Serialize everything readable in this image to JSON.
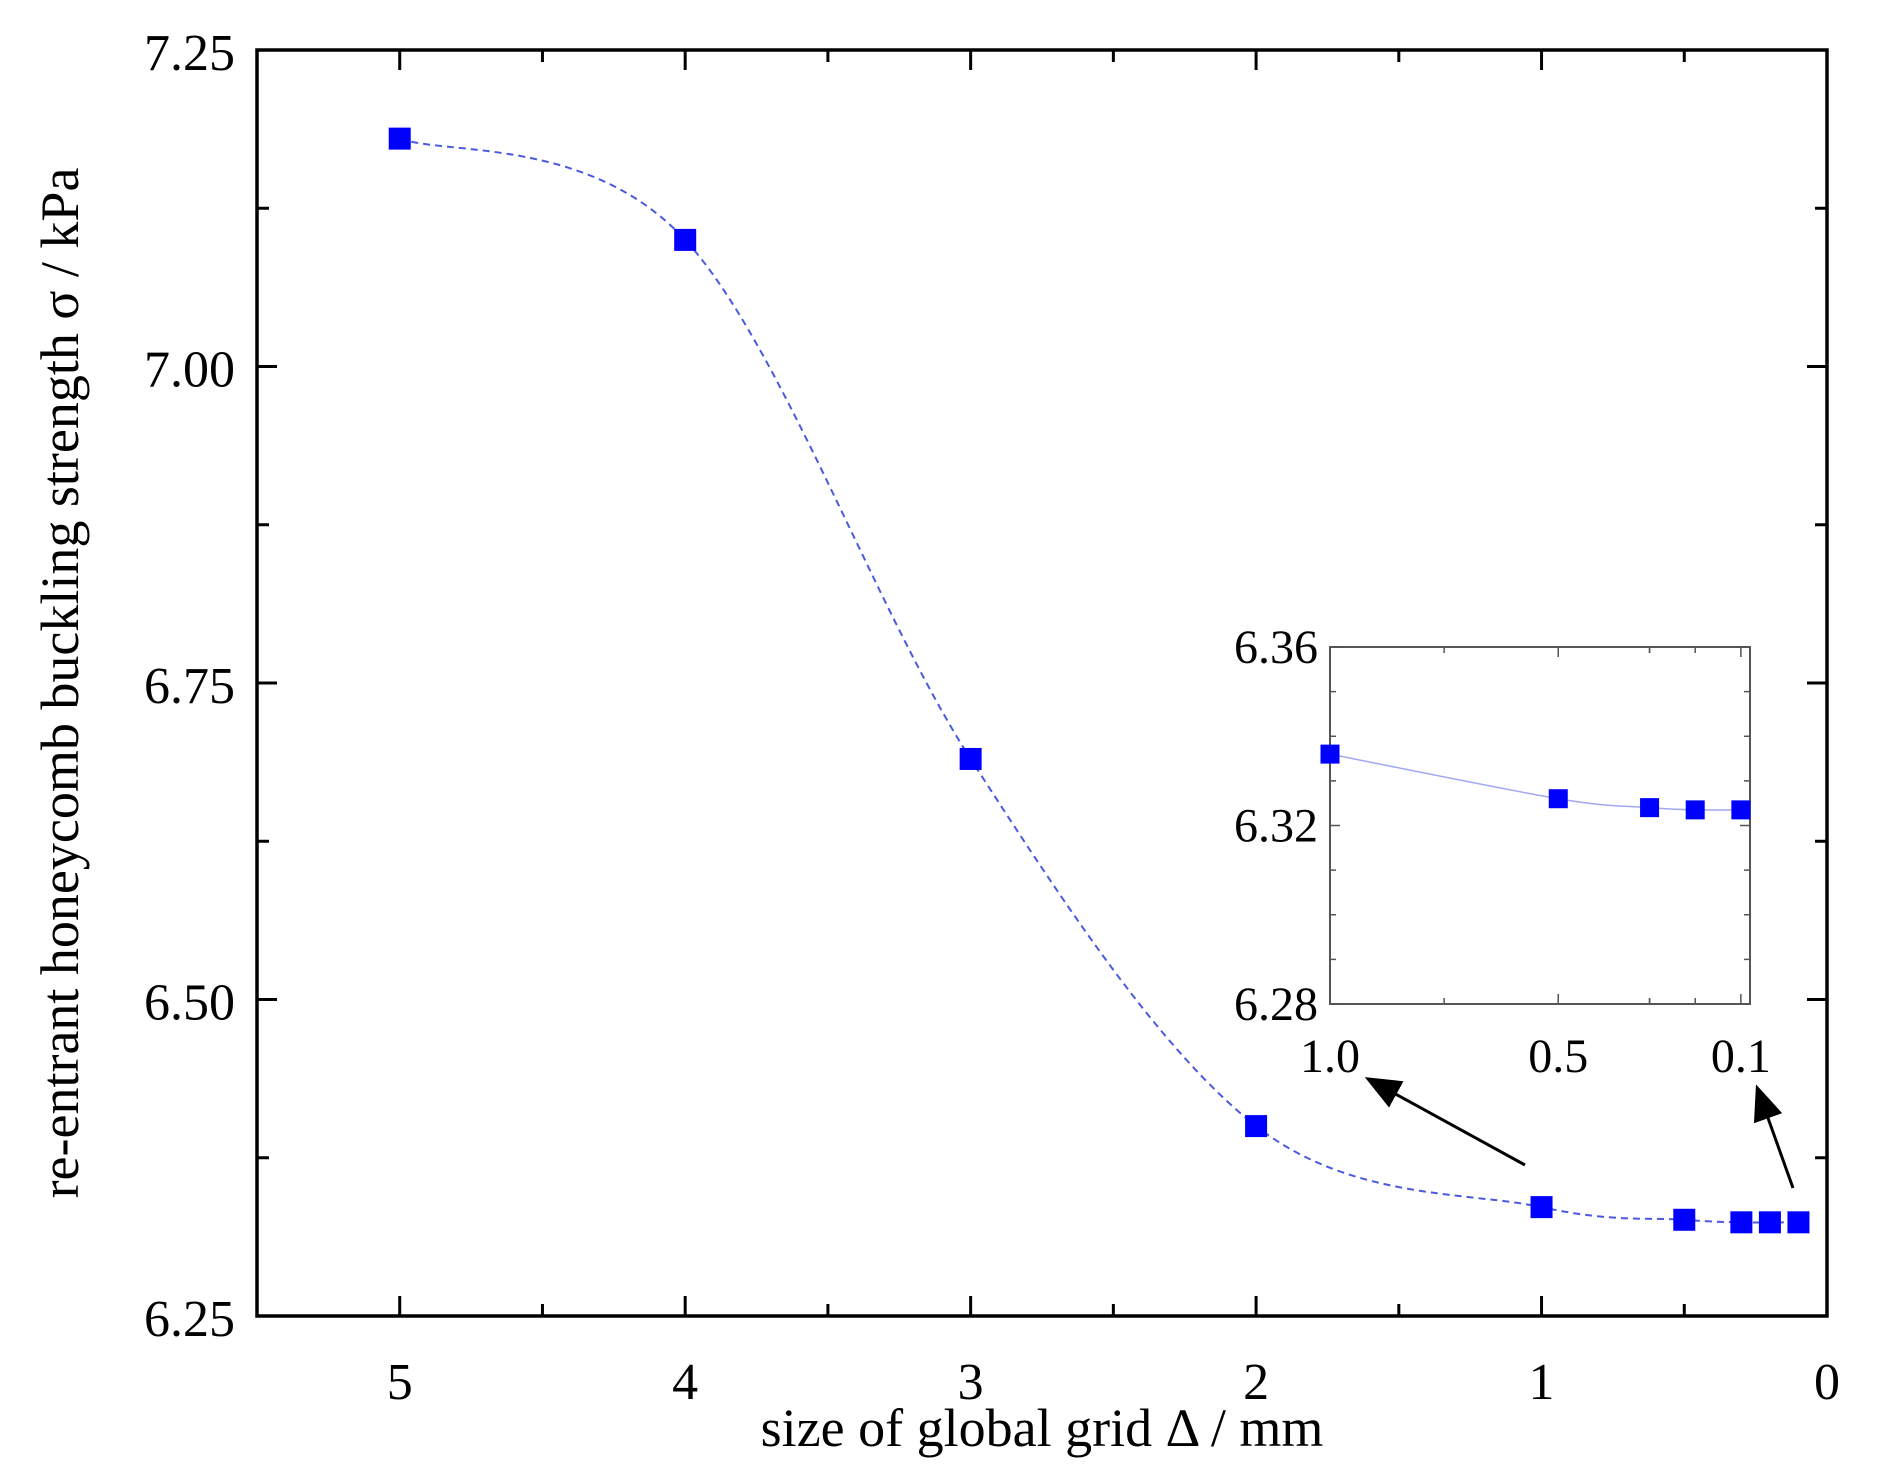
{
  "chart_data": [
    {
      "type": "line",
      "xlabel": "size of global grid Δ / mm",
      "ylabel": "re-entrant honeycomb  buckling strength σ / kPa",
      "xlim": [
        5.5,
        0
      ],
      "ylim": [
        6.25,
        7.25
      ],
      "x_reversed": true,
      "x_ticks": [
        "5",
        "4",
        "3",
        "2",
        "1",
        "0"
      ],
      "x_tick_values": [
        5,
        4,
        3,
        2,
        1,
        0
      ],
      "y_ticks": [
        "6.25",
        "6.50",
        "6.75",
        "7.00",
        "7.25"
      ],
      "y_tick_values": [
        6.25,
        6.5,
        6.75,
        7.0,
        7.25
      ],
      "grid": false,
      "series": [
        {
          "marker": "square",
          "line_style": "dashed",
          "color": "#0000ff",
          "line_color": "#4a5ae0",
          "x": [
            5,
            4,
            3,
            2,
            1,
            0.5,
            0.3,
            0.2,
            0.1
          ],
          "y": [
            7.18,
            7.1,
            6.69,
            6.4,
            6.336,
            6.326,
            6.324,
            6.324,
            6.324
          ]
        }
      ]
    },
    {
      "type": "line",
      "role": "inset",
      "xlim": [
        1.0,
        0.08
      ],
      "ylim": [
        6.28,
        6.36
      ],
      "x_ticks": [
        "1.0",
        "0.5",
        "0.1"
      ],
      "x_tick_values": [
        1.0,
        0.5,
        0.1
      ],
      "y_ticks": [
        "6.28",
        "6.32",
        "6.36"
      ],
      "y_tick_values": [
        6.28,
        6.32,
        6.36
      ],
      "grid": false,
      "series": [
        {
          "marker": "square",
          "line_style": "solid",
          "color": "#0000ff",
          "line_color": "#a0a8f0",
          "x": [
            1.0,
            0.5,
            0.3,
            0.2,
            0.1
          ],
          "y": [
            6.336,
            6.326,
            6.324,
            6.3235,
            6.3235
          ]
        }
      ]
    }
  ]
}
